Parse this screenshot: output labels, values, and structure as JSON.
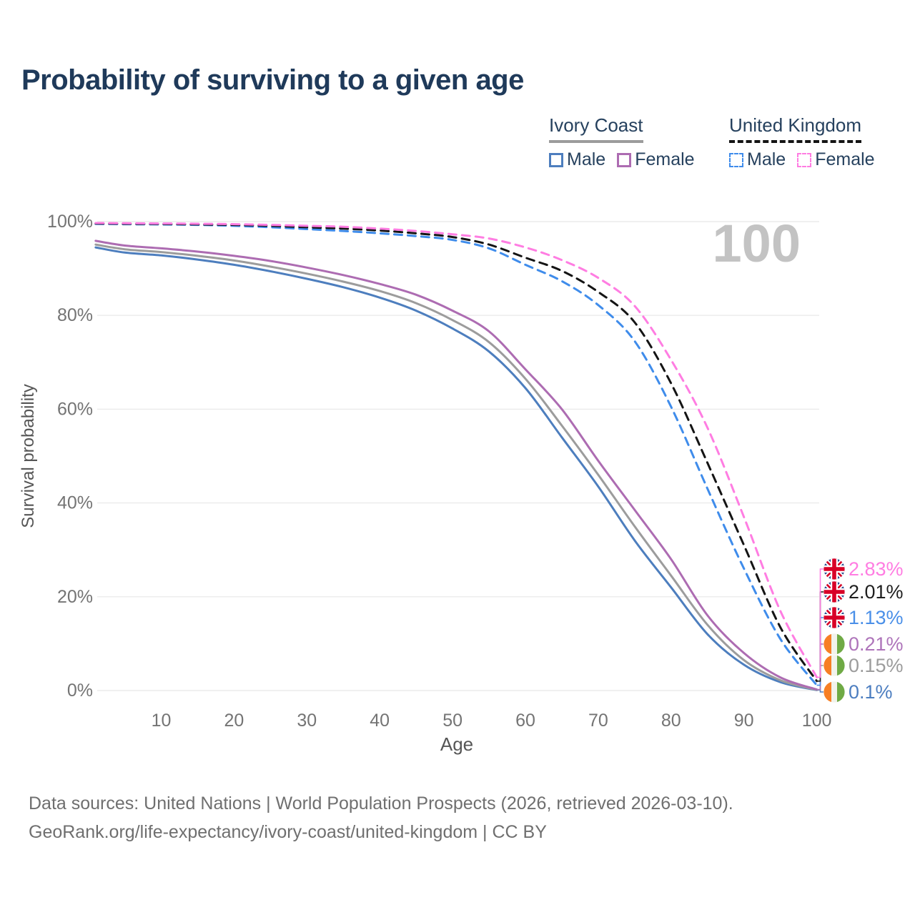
{
  "title": "Probability of surviving to a given age",
  "watermark": "100",
  "legend": {
    "groups": [
      {
        "label": "Ivory Coast",
        "line_style": "solid",
        "line_color": "#9c9c9c",
        "items": [
          {
            "label": "Male",
            "color": "#4d7ebe",
            "dashed": false
          },
          {
            "label": "Female",
            "color": "#ad6cb2",
            "dashed": false
          }
        ]
      },
      {
        "label": "United Kingdom",
        "line_style": "dashed",
        "line_color": "#141414",
        "items": [
          {
            "label": "Male",
            "color": "#3f8ceb",
            "dashed": true
          },
          {
            "label": "Female",
            "color": "#ff7de2",
            "dashed": true
          }
        ]
      }
    ]
  },
  "chart_data": {
    "type": "line",
    "title": "Probability of surviving to a given age",
    "xlabel": "Age",
    "ylabel": "Survival probability",
    "xlim": [
      0,
      100
    ],
    "ylim": [
      0,
      100
    ],
    "grid": true,
    "x_ticks": [
      10,
      20,
      30,
      40,
      50,
      60,
      70,
      80,
      90,
      100
    ],
    "y_ticks": [
      {
        "value": 0,
        "label": "0%"
      },
      {
        "value": 20,
        "label": "20%"
      },
      {
        "value": 40,
        "label": "40%"
      },
      {
        "value": 60,
        "label": "60%"
      },
      {
        "value": 80,
        "label": "80%"
      },
      {
        "value": 100,
        "label": "100%"
      }
    ],
    "ages": [
      1,
      5,
      10,
      15,
      20,
      25,
      30,
      35,
      40,
      45,
      50,
      55,
      60,
      65,
      70,
      75,
      80,
      85,
      90,
      95,
      100
    ],
    "series": [
      {
        "name": "Ivory Coast Male",
        "color": "#4d7ebe",
        "dashed": false,
        "end_label": {
          "text": "0.1%",
          "color": "#4d7ec0",
          "flag": "ivory-coast-flag-icon"
        },
        "values": [
          94.5,
          93.4,
          92.8,
          91.9,
          90.8,
          89.4,
          87.8,
          86.0,
          83.8,
          81.0,
          77.2,
          72.3,
          64.5,
          54.0,
          43.5,
          32.0,
          22.0,
          12.0,
          5.5,
          1.8,
          0.1
        ]
      },
      {
        "name": "Ivory Coast",
        "color": "#9c9c9c",
        "dashed": false,
        "end_label": {
          "text": "0.15%",
          "color": "#9c9c9c",
          "flag": "ivory-coast-flag-icon"
        },
        "values": [
          95.1,
          94.1,
          93.5,
          92.7,
          91.7,
          90.4,
          88.9,
          87.2,
          85.2,
          82.6,
          79.0,
          74.3,
          66.5,
          56.5,
          46.0,
          35.0,
          24.5,
          14.0,
          6.5,
          2.2,
          0.15
        ]
      },
      {
        "name": "Ivory Coast Female",
        "color": "#ad6cb2",
        "dashed": false,
        "end_label": {
          "text": "0.21%",
          "color": "#ae74ba",
          "flag": "ivory-coast-flag-icon"
        },
        "values": [
          95.9,
          94.9,
          94.3,
          93.6,
          92.7,
          91.6,
          90.2,
          88.6,
          86.7,
          84.4,
          81.0,
          76.6,
          68.5,
          60.0,
          49.0,
          38.5,
          28.0,
          16.0,
          8.0,
          2.8,
          0.21
        ]
      },
      {
        "name": "United Kingdom Male",
        "color": "#3f8ceb",
        "dashed": true,
        "end_label": {
          "text": "1.13%",
          "color": "#4a8fe8",
          "flag": "uk-flag-icon"
        },
        "values": [
          99.5,
          99.45,
          99.4,
          99.3,
          99.1,
          98.8,
          98.4,
          98.0,
          97.5,
          96.9,
          96.1,
          94.3,
          90.8,
          87.3,
          82.2,
          74.5,
          60.5,
          43.0,
          26.0,
          11.0,
          1.13
        ]
      },
      {
        "name": "United Kingdom",
        "color": "#141414",
        "dashed": true,
        "end_label": {
          "text": "2.01%",
          "color": "#1f1f1f",
          "flag": "uk-flag-icon"
        },
        "values": [
          99.6,
          99.55,
          99.5,
          99.4,
          99.3,
          99.1,
          98.8,
          98.5,
          98.1,
          97.5,
          96.7,
          95.1,
          92.3,
          89.5,
          85.0,
          78.5,
          65.5,
          48.5,
          31.0,
          13.5,
          2.01
        ]
      },
      {
        "name": "United Kingdom Female",
        "color": "#ff7de2",
        "dashed": true,
        "end_label": {
          "text": "2.83%",
          "color": "#ff7de2",
          "flag": "uk-flag-icon"
        },
        "values": [
          99.7,
          99.65,
          99.6,
          99.55,
          99.45,
          99.3,
          99.1,
          98.9,
          98.5,
          98.0,
          97.3,
          96.4,
          94.5,
          91.8,
          88.0,
          82.0,
          70.5,
          56.0,
          37.0,
          17.0,
          2.83
        ]
      }
    ]
  },
  "footer": {
    "line1": "Data sources: United Nations | World Population Prospects (2026, retrieved 2026-03-10).",
    "line2": "GeoRank.org/life-expectancy/ivory-coast/united-kingdom | CC BY"
  }
}
